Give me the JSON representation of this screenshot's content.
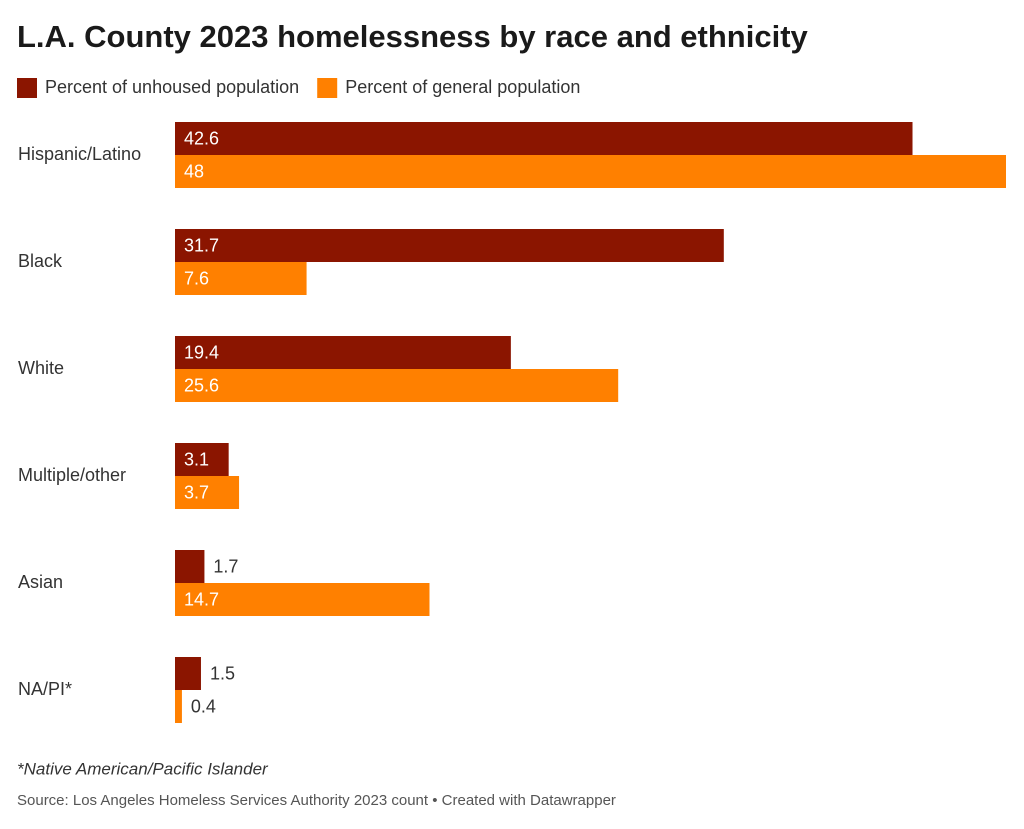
{
  "chart_data": {
    "type": "barh",
    "title": "L.A. County 2023 homelessness by race and ethnicity",
    "categories": [
      "Hispanic/Latino",
      "Black",
      "White",
      "Multiple/other",
      "Asian",
      "NA/PI*"
    ],
    "series": [
      {
        "name": "Percent of unhoused population",
        "color": "#8b1500",
        "values": [
          42.6,
          31.7,
          19.4,
          3.1,
          1.7,
          1.5
        ]
      },
      {
        "name": "Percent of general population",
        "color": "#ff8000",
        "values": [
          48,
          7.6,
          25.6,
          3.7,
          14.7,
          0.4
        ]
      }
    ],
    "xlim": [
      0,
      48
    ],
    "note": "*Native American/Pacific Islander",
    "source": "Source: Los Angeles Homeless Services Authority 2023 count • Created with Datawrapper"
  }
}
